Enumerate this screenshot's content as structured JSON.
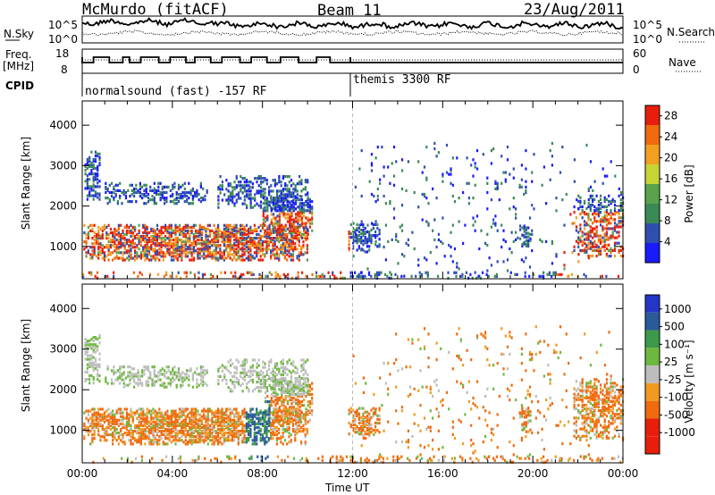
{
  "header": {
    "station": "McMurdo (fitACF)",
    "beam": "Beam 11",
    "date": "23/Aug/2011"
  },
  "strip_labels": {
    "nsky": "N.Sky",
    "freq": "Freq.",
    "freq_unit": "[MHz]",
    "cpid": "CPID",
    "nsearch": "N.Search",
    "nave": "Nave",
    "nsky_ticks": [
      "10^5",
      "10^0"
    ],
    "nsearch_ticks": [
      "10^5",
      "10^0"
    ],
    "freq_ticks": [
      "18",
      "8"
    ],
    "nave_ticks": [
      "60",
      "0"
    ]
  },
  "cpid_segments": [
    {
      "label": "normalsound (fast) -157 RF",
      "start_hour": 0
    },
    {
      "label": "themis 3300 RF",
      "start_hour": 11.9
    }
  ],
  "colors": {
    "power": [
      "#1a1aff",
      "#2f4fb0",
      "#3a8a55",
      "#5aa34a",
      "#c7d436",
      "#f2a020",
      "#f06a10",
      "#e81e0c"
    ],
    "velocity": [
      "#e81e0c",
      "#f06a10",
      "#f29a20",
      "#bdbdbd",
      "#6fb840",
      "#3c9a4a",
      "#2a5a9a",
      "#2535c8"
    ]
  },
  "chart_data": [
    {
      "type": "heatmap",
      "title": "Power",
      "xlabel": "Time UT",
      "ylabel": "Slant Range [km]",
      "x_ticks": [
        "00:00",
        "04:00",
        "08:00",
        "12:00",
        "16:00",
        "20:00",
        "00:00"
      ],
      "y_ticks": [
        "1000",
        "2000",
        "3000",
        "4000"
      ],
      "xlim_hours": [
        0,
        24
      ],
      "ylim_km": [
        200,
        4600
      ],
      "colorbar_label": "Power [dB]",
      "colorbar_ticks": [
        "4",
        "8",
        "12",
        "16",
        "20",
        "24",
        "28"
      ],
      "colorbar_range": [
        0,
        30
      ]
    },
    {
      "type": "heatmap",
      "title": "Velocity",
      "xlabel": "Time UT",
      "ylabel": "Slant Range [km]",
      "x_ticks": [
        "00:00",
        "04:00",
        "08:00",
        "12:00",
        "16:00",
        "20:00",
        "00:00"
      ],
      "y_ticks": [
        "1000",
        "2000",
        "3000",
        "4000"
      ],
      "xlim_hours": [
        0,
        24
      ],
      "ylim_km": [
        200,
        4600
      ],
      "colorbar_label": "Velocity [m s⁻¹]",
      "colorbar_ticks": [
        "1000",
        "500",
        "100",
        "25",
        "-25",
        "-100",
        "-500",
        "-1000"
      ]
    }
  ]
}
